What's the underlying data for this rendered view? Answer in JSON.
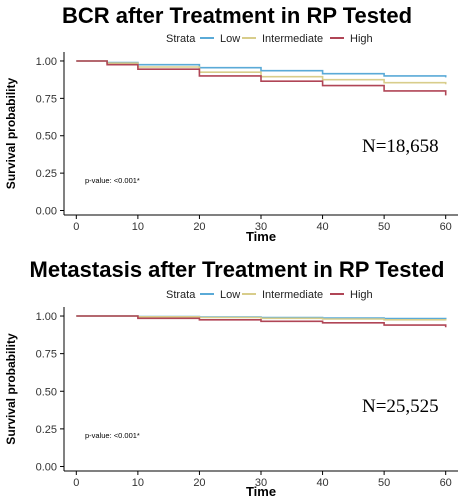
{
  "colors": {
    "Low": "#5aaad7",
    "Intermediate": "#d8cd8b",
    "High": "#b04556"
  },
  "chart_data": [
    {
      "type": "line",
      "title": "BCR after Treatment in RP Tested",
      "xlabel": "Time",
      "ylabel": "Survival probability",
      "xlim": [
        -2,
        62
      ],
      "ylim": [
        -0.03,
        1.06
      ],
      "x_ticks": [
        0,
        10,
        20,
        30,
        40,
        50,
        60
      ],
      "y_ticks": [
        0.0,
        0.25,
        0.5,
        0.75,
        1.0
      ],
      "y_tick_labels": [
        "0.00",
        "0.25",
        "0.50",
        "0.75",
        "1.00"
      ],
      "legend_title": "Strata",
      "legend_position": "top",
      "grid": false,
      "annotation_p": "p-value: <0.001*",
      "annotation_n": "N=18,658",
      "series": [
        {
          "name": "Low",
          "x": [
            0,
            3,
            5,
            10,
            20,
            30,
            40,
            50,
            60
          ],
          "y": [
            1.0,
            1.0,
            0.99,
            0.975,
            0.955,
            0.935,
            0.915,
            0.9,
            0.89
          ]
        },
        {
          "name": "Intermediate",
          "x": [
            0,
            3,
            5,
            10,
            20,
            30,
            40,
            50,
            60
          ],
          "y": [
            1.0,
            1.0,
            0.985,
            0.96,
            0.925,
            0.895,
            0.875,
            0.855,
            0.845
          ]
        },
        {
          "name": "High",
          "x": [
            0,
            3,
            5,
            10,
            20,
            30,
            40,
            50,
            60
          ],
          "y": [
            1.0,
            1.0,
            0.975,
            0.945,
            0.9,
            0.865,
            0.835,
            0.8,
            0.77
          ]
        }
      ]
    },
    {
      "type": "line",
      "title": "Metastasis after Treatment in RP Tested",
      "xlabel": "Time",
      "ylabel": "Survival probability",
      "xlim": [
        -2,
        62
      ],
      "ylim": [
        -0.03,
        1.06
      ],
      "x_ticks": [
        0,
        10,
        20,
        30,
        40,
        50,
        60
      ],
      "y_ticks": [
        0.0,
        0.25,
        0.5,
        0.75,
        1.0
      ],
      "y_tick_labels": [
        "0.00",
        "0.25",
        "0.50",
        "0.75",
        "1.00"
      ],
      "legend_title": "Strata",
      "legend_position": "top",
      "grid": false,
      "annotation_p": "p-value: <0.001*",
      "annotation_n": "N=25,525",
      "series": [
        {
          "name": "Low",
          "x": [
            0,
            3,
            10,
            20,
            30,
            40,
            50,
            60
          ],
          "y": [
            1.0,
            1.0,
            0.997,
            0.993,
            0.99,
            0.987,
            0.983,
            0.98
          ]
        },
        {
          "name": "Intermediate",
          "x": [
            0,
            3,
            10,
            20,
            30,
            40,
            50,
            60
          ],
          "y": [
            1.0,
            1.0,
            0.995,
            0.99,
            0.985,
            0.98,
            0.975,
            0.97
          ]
        },
        {
          "name": "High",
          "x": [
            0,
            3,
            10,
            20,
            30,
            40,
            50,
            60
          ],
          "y": [
            1.0,
            1.0,
            0.985,
            0.975,
            0.965,
            0.955,
            0.94,
            0.925
          ]
        }
      ]
    }
  ]
}
